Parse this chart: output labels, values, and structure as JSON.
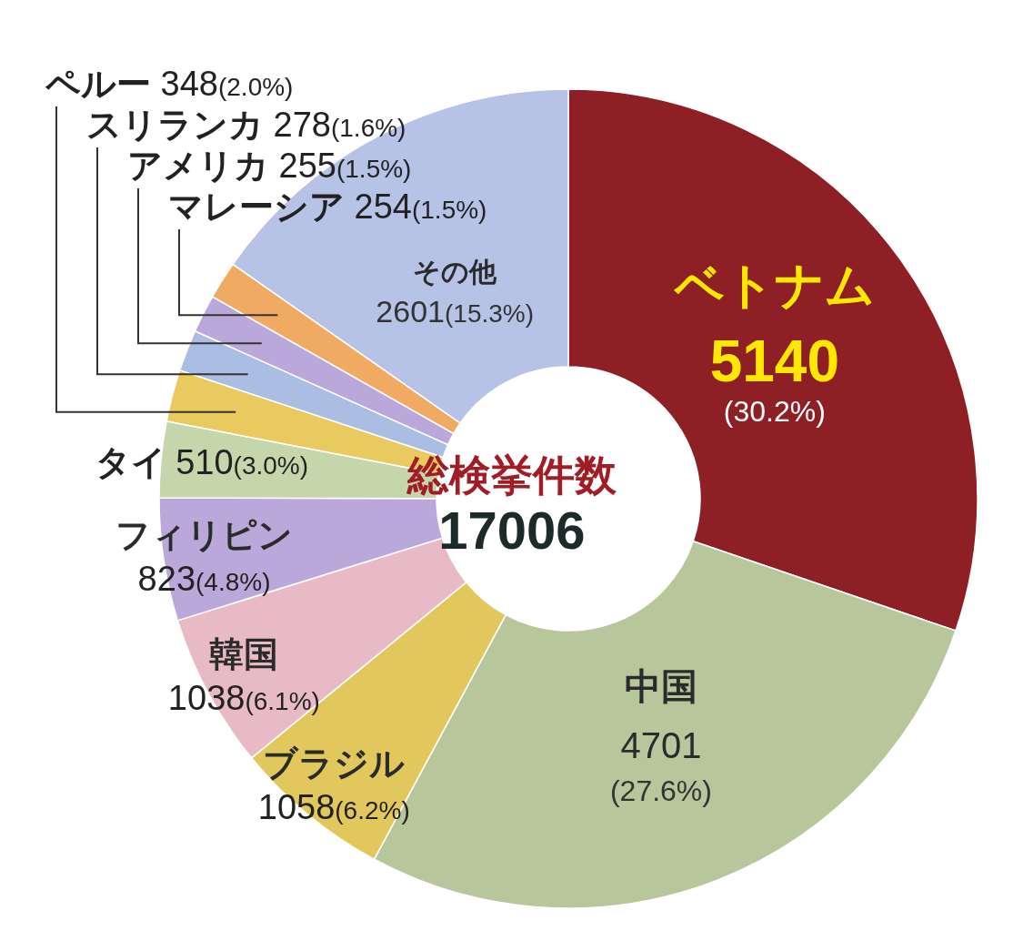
{
  "chart_data": {
    "type": "donut",
    "categories": [
      "ベトナム",
      "中国",
      "ブラジル",
      "韓国",
      "フィリピン",
      "タイ",
      "ペルー",
      "スリランカ",
      "アメリカ",
      "マレーシア",
      "その他"
    ],
    "values": [
      5140,
      4701,
      1058,
      1038,
      823,
      510,
      348,
      278,
      255,
      254,
      2601
    ],
    "colors": [
      "#8e1f25",
      "#b8c69c",
      "#e2c75c",
      "#e8bac6",
      "#bba8da",
      "#c6d6ab",
      "#e9ca5e",
      "#aabde2",
      "#bba8da",
      "#f1aa62",
      "#b6c2e6"
    ],
    "value_labels": [
      "5140\n(30.2%)",
      "4701\n(27.6%)",
      "1058(6.2%)",
      "1038(6.1%)",
      "823(4.8%)",
      "510(3.0%)",
      "348(2.0%)",
      "278(1.6%)",
      "255(1.5%)",
      "254(1.5%)",
      "2601(15.3%)"
    ],
    "annotations": [
      "総検挙件数",
      "17006"
    ],
    "legend": false
  }
}
